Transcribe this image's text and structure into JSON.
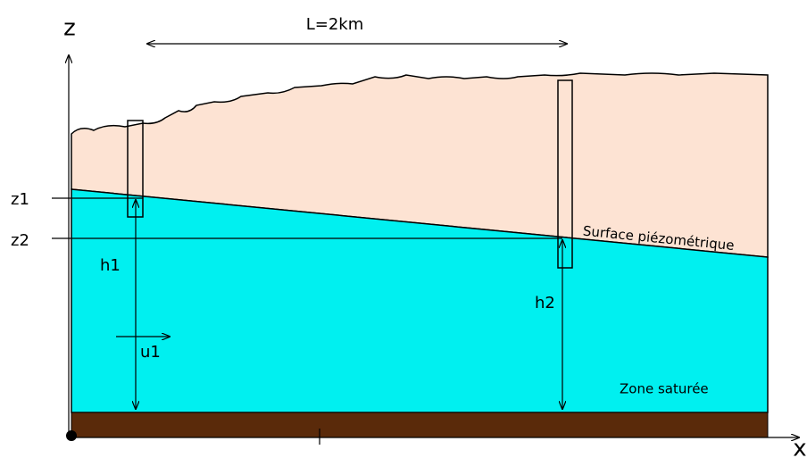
{
  "axes": {
    "z": "z",
    "x": "x"
  },
  "length_label": "L=2km",
  "levels": {
    "z1": "z1",
    "z2": "z2"
  },
  "heads": {
    "h1": "h1",
    "h2": "h2"
  },
  "velocity": "u1",
  "surface_label": "Surface piézométrique",
  "zone_label": "Zone saturée"
}
